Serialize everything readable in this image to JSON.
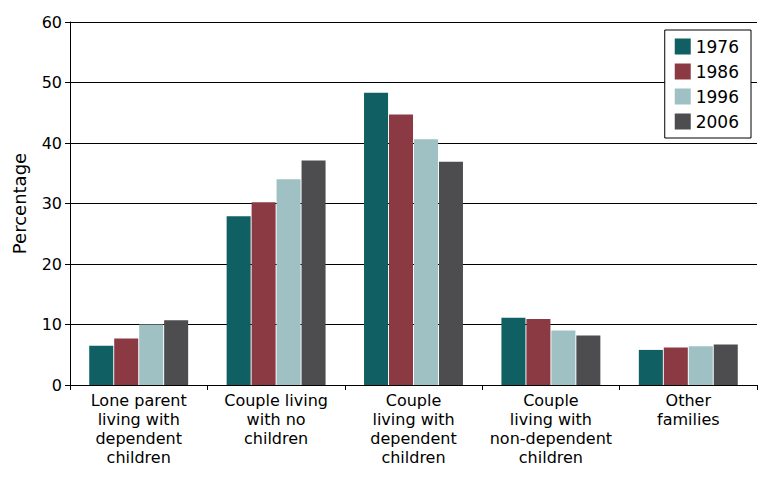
{
  "chart_data": {
    "type": "bar",
    "y_label": "Percentage",
    "categories": [
      "Lone parent\nliving with\ndependent\nchildren",
      "Couple living\nwith no\nchildren",
      "Couple\nliving with\ndependent\nchildren",
      "Couple\nliving with\nnon-dependent\nchildren",
      "Other\nfamilies"
    ],
    "series": [
      {
        "name": "1976",
        "color": "#0f5f63",
        "values": [
          6.5,
          27.9,
          48.3,
          11.1,
          5.8
        ]
      },
      {
        "name": "1986",
        "color": "#8b3a44",
        "values": [
          7.7,
          30.2,
          44.7,
          10.9,
          6.2
        ]
      },
      {
        "name": "1996",
        "color": "#9fc1c3",
        "values": [
          10.0,
          34.0,
          40.6,
          9.0,
          6.4
        ]
      },
      {
        "name": "2006",
        "color": "#4d4d4f",
        "values": [
          10.7,
          37.1,
          36.9,
          8.2,
          6.7
        ]
      }
    ],
    "ylim": [
      0,
      60
    ],
    "yticks": [
      0,
      10,
      20,
      30,
      40,
      50,
      60
    ],
    "grid": true,
    "legend": "upper right"
  }
}
